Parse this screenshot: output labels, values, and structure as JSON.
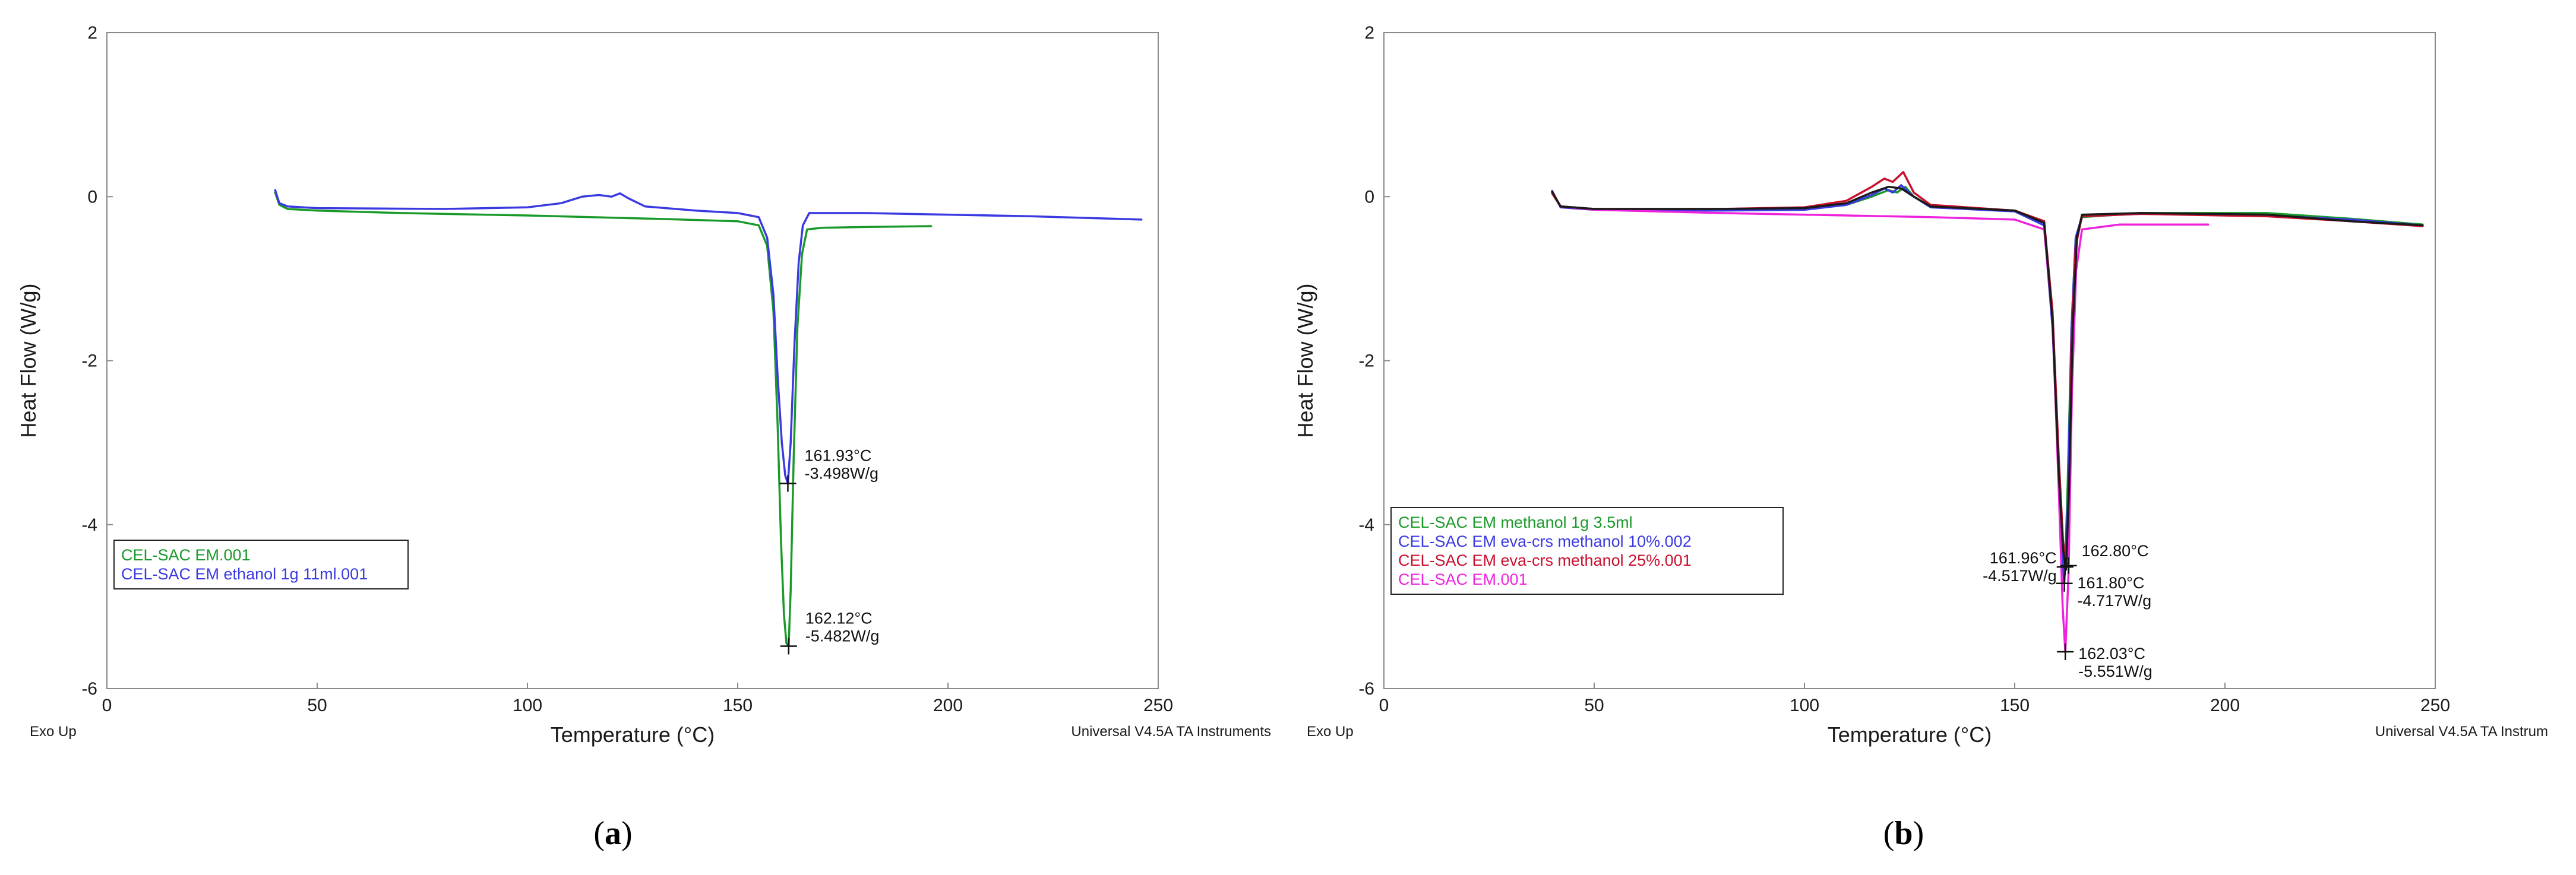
{
  "chart_data": [
    {
      "type": "line",
      "panel_label": "a",
      "xlabel": "Temperature (°C)",
      "ylabel": "Heat Flow (W/g)",
      "xlim": [
        0,
        250
      ],
      "ylim": [
        -6,
        2
      ],
      "x_ticks": [
        0,
        50,
        100,
        150,
        200,
        250
      ],
      "y_ticks": [
        2,
        0,
        -2,
        -4,
        -6
      ],
      "grid": false,
      "corner_left": "Exo Up",
      "corner_right": "Universal V4.5A TA Instruments",
      "legend_position": "bottom-left",
      "series": [
        {
          "name": "CEL-SAC EM.001",
          "color": "#1a9a2a",
          "points": [
            [
              40,
              0.05
            ],
            [
              41,
              -0.1
            ],
            [
              43,
              -0.15
            ],
            [
              50,
              -0.17
            ],
            [
              70,
              -0.2
            ],
            [
              100,
              -0.23
            ],
            [
              130,
              -0.27
            ],
            [
              150,
              -0.3
            ],
            [
              155,
              -0.35
            ],
            [
              157,
              -0.6
            ],
            [
              158.5,
              -1.4
            ],
            [
              159.5,
              -2.8
            ],
            [
              160.3,
              -4.2
            ],
            [
              161,
              -5.1
            ],
            [
              161.6,
              -5.45
            ],
            [
              162.12,
              -5.482
            ],
            [
              162.6,
              -4.8
            ],
            [
              163.3,
              -3.2
            ],
            [
              164.2,
              -1.6
            ],
            [
              165.3,
              -0.7
            ],
            [
              166.5,
              -0.4
            ],
            [
              170,
              -0.38
            ],
            [
              180,
              -0.37
            ],
            [
              196,
              -0.36
            ]
          ]
        },
        {
          "name": "CEL-SAC EM ethanol 1g 11ml.001",
          "color": "#3a3ae0",
          "points": [
            [
              40,
              0.08
            ],
            [
              41,
              -0.08
            ],
            [
              43,
              -0.12
            ],
            [
              50,
              -0.14
            ],
            [
              80,
              -0.15
            ],
            [
              100,
              -0.13
            ],
            [
              108,
              -0.08
            ],
            [
              113,
              0.0
            ],
            [
              117,
              0.02
            ],
            [
              120,
              0.0
            ],
            [
              122,
              0.04
            ],
            [
              124,
              -0.02
            ],
            [
              128,
              -0.12
            ],
            [
              140,
              -0.17
            ],
            [
              150,
              -0.2
            ],
            [
              155,
              -0.25
            ],
            [
              157,
              -0.5
            ],
            [
              158.5,
              -1.2
            ],
            [
              159.5,
              -2.2
            ],
            [
              160.5,
              -3.0
            ],
            [
              161.3,
              -3.4
            ],
            [
              161.93,
              -3.498
            ],
            [
              162.6,
              -3.0
            ],
            [
              163.5,
              -1.8
            ],
            [
              164.5,
              -0.8
            ],
            [
              165.5,
              -0.35
            ],
            [
              167,
              -0.2
            ],
            [
              180,
              -0.2
            ],
            [
              200,
              -0.22
            ],
            [
              220,
              -0.24
            ],
            [
              246,
              -0.28
            ]
          ]
        }
      ],
      "annotations": [
        {
          "x": 161.93,
          "y": -3.498,
          "lines": [
            "161.93°C",
            "-3.498W/g"
          ]
        },
        {
          "x": 162.12,
          "y": -5.482,
          "lines": [
            "162.12°C",
            "-5.482W/g"
          ]
        }
      ]
    },
    {
      "type": "line",
      "panel_label": "b",
      "xlabel": "Temperature (°C)",
      "ylabel": "Heat Flow (W/g)",
      "xlim": [
        0,
        250
      ],
      "ylim": [
        -6,
        2
      ],
      "x_ticks": [
        0,
        50,
        100,
        150,
        200,
        250
      ],
      "y_ticks": [
        2,
        0,
        -2,
        -4,
        -6
      ],
      "grid": false,
      "corner_left": "Exo Up",
      "corner_right": "Universal V4.5A TA Instrum",
      "legend_position": "bottom-left",
      "series": [
        {
          "name": "CEL-SAC EM methanol 1g 3.5ml",
          "color": "#1a9a2a",
          "points": [
            [
              40,
              0.05
            ],
            [
              42,
              -0.12
            ],
            [
              50,
              -0.15
            ],
            [
              80,
              -0.16
            ],
            [
              100,
              -0.15
            ],
            [
              110,
              -0.1
            ],
            [
              116,
              0.0
            ],
            [
              120,
              0.08
            ],
            [
              122,
              0.05
            ],
            [
              124,
              0.12
            ],
            [
              126,
              0.0
            ],
            [
              130,
              -0.12
            ],
            [
              150,
              -0.17
            ],
            [
              157,
              -0.3
            ],
            [
              159,
              -1.5
            ],
            [
              160.5,
              -3.5
            ],
            [
              161.4,
              -4.4
            ],
            [
              161.96,
              -4.517
            ],
            [
              162.6,
              -3.5
            ],
            [
              163.5,
              -1.6
            ],
            [
              164.5,
              -0.5
            ],
            [
              166,
              -0.25
            ],
            [
              180,
              -0.2
            ],
            [
              210,
              -0.2
            ],
            [
              230,
              -0.27
            ],
            [
              247,
              -0.34
            ]
          ]
        },
        {
          "name": "CEL-SAC EM eva-crs methanol 10%.002",
          "color": "#3a3ae0",
          "points": [
            [
              40,
              0.07
            ],
            [
              42,
              -0.13
            ],
            [
              50,
              -0.16
            ],
            [
              80,
              -0.17
            ],
            [
              100,
              -0.16
            ],
            [
              110,
              -0.1
            ],
            [
              116,
              0.02
            ],
            [
              119,
              0.1
            ],
            [
              121,
              0.05
            ],
            [
              123,
              0.14
            ],
            [
              126,
              0.0
            ],
            [
              130,
              -0.13
            ],
            [
              150,
              -0.18
            ],
            [
              157,
              -0.35
            ],
            [
              159,
              -1.6
            ],
            [
              160.5,
              -3.4
            ],
            [
              161.3,
              -4.4
            ],
            [
              161.8,
              -4.717
            ],
            [
              162.6,
              -3.8
            ],
            [
              163.5,
              -1.6
            ],
            [
              164.5,
              -0.5
            ],
            [
              166,
              -0.24
            ],
            [
              180,
              -0.21
            ],
            [
              210,
              -0.23
            ],
            [
              230,
              -0.28
            ],
            [
              247,
              -0.35
            ]
          ]
        },
        {
          "name": "CEL-SAC EM eva-crs methanol 25%.001",
          "color": "#c8102e",
          "points": [
            [
              40,
              0.04
            ],
            [
              42,
              -0.12
            ],
            [
              50,
              -0.15
            ],
            [
              80,
              -0.15
            ],
            [
              100,
              -0.13
            ],
            [
              110,
              -0.05
            ],
            [
              116,
              0.12
            ],
            [
              119,
              0.22
            ],
            [
              121,
              0.18
            ],
            [
              123.5,
              0.3
            ],
            [
              126,
              0.05
            ],
            [
              130,
              -0.1
            ],
            [
              150,
              -0.17
            ],
            [
              157,
              -0.3
            ],
            [
              159,
              -1.4
            ],
            [
              160.5,
              -3.2
            ],
            [
              161.5,
              -4.2
            ],
            [
              162.1,
              -4.45
            ],
            [
              162.8,
              -4.5
            ],
            [
              163.5,
              -1.8
            ],
            [
              164.5,
              -0.6
            ],
            [
              166,
              -0.24
            ],
            [
              180,
              -0.21
            ],
            [
              210,
              -0.24
            ],
            [
              230,
              -0.3
            ],
            [
              247,
              -0.36
            ]
          ]
        },
        {
          "name": "CEL-SAC EM.001",
          "color": "#ee22dd",
          "points": [
            [
              40,
              0.06
            ],
            [
              42,
              -0.12
            ],
            [
              50,
              -0.16
            ],
            [
              80,
              -0.2
            ],
            [
              100,
              -0.22
            ],
            [
              130,
              -0.25
            ],
            [
              150,
              -0.28
            ],
            [
              157,
              -0.4
            ],
            [
              159,
              -1.5
            ],
            [
              160.5,
              -3.6
            ],
            [
              161.4,
              -5.0
            ],
            [
              162.03,
              -5.551
            ],
            [
              162.8,
              -4.6
            ],
            [
              163.6,
              -2.4
            ],
            [
              164.6,
              -0.9
            ],
            [
              166,
              -0.4
            ],
            [
              175,
              -0.34
            ],
            [
              196,
              -0.34
            ]
          ]
        },
        {
          "name": "",
          "color": "#1a1a1a",
          "points": [
            [
              40,
              0.06
            ],
            [
              42,
              -0.12
            ],
            [
              50,
              -0.15
            ],
            [
              80,
              -0.15
            ],
            [
              100,
              -0.14
            ],
            [
              110,
              -0.08
            ],
            [
              116,
              0.05
            ],
            [
              120,
              0.12
            ],
            [
              123,
              0.1
            ],
            [
              126,
              0.0
            ],
            [
              130,
              -0.12
            ],
            [
              150,
              -0.17
            ],
            [
              157,
              -0.32
            ],
            [
              159,
              -1.5
            ],
            [
              160.5,
              -3.4
            ],
            [
              161.5,
              -4.3
            ],
            [
              162.2,
              -4.55
            ],
            [
              162.9,
              -3.6
            ],
            [
              163.8,
              -1.6
            ],
            [
              164.8,
              -0.5
            ],
            [
              166,
              -0.22
            ],
            [
              180,
              -0.2
            ],
            [
              210,
              -0.22
            ],
            [
              230,
              -0.3
            ],
            [
              247,
              -0.35
            ]
          ]
        }
      ],
      "annotations": [
        {
          "x": 161.96,
          "y": -4.517,
          "lines": [
            "161.96°C",
            "-4.517W/g"
          ]
        },
        {
          "x": 162.8,
          "y": -4.5,
          "lines": [
            "162.80°C"
          ]
        },
        {
          "x": 161.8,
          "y": -4.717,
          "lines": [
            "161.80°C",
            "-4.717W/g"
          ]
        },
        {
          "x": 162.03,
          "y": -5.551,
          "lines": [
            "162.03°C",
            "-5.551W/g"
          ]
        }
      ]
    }
  ]
}
